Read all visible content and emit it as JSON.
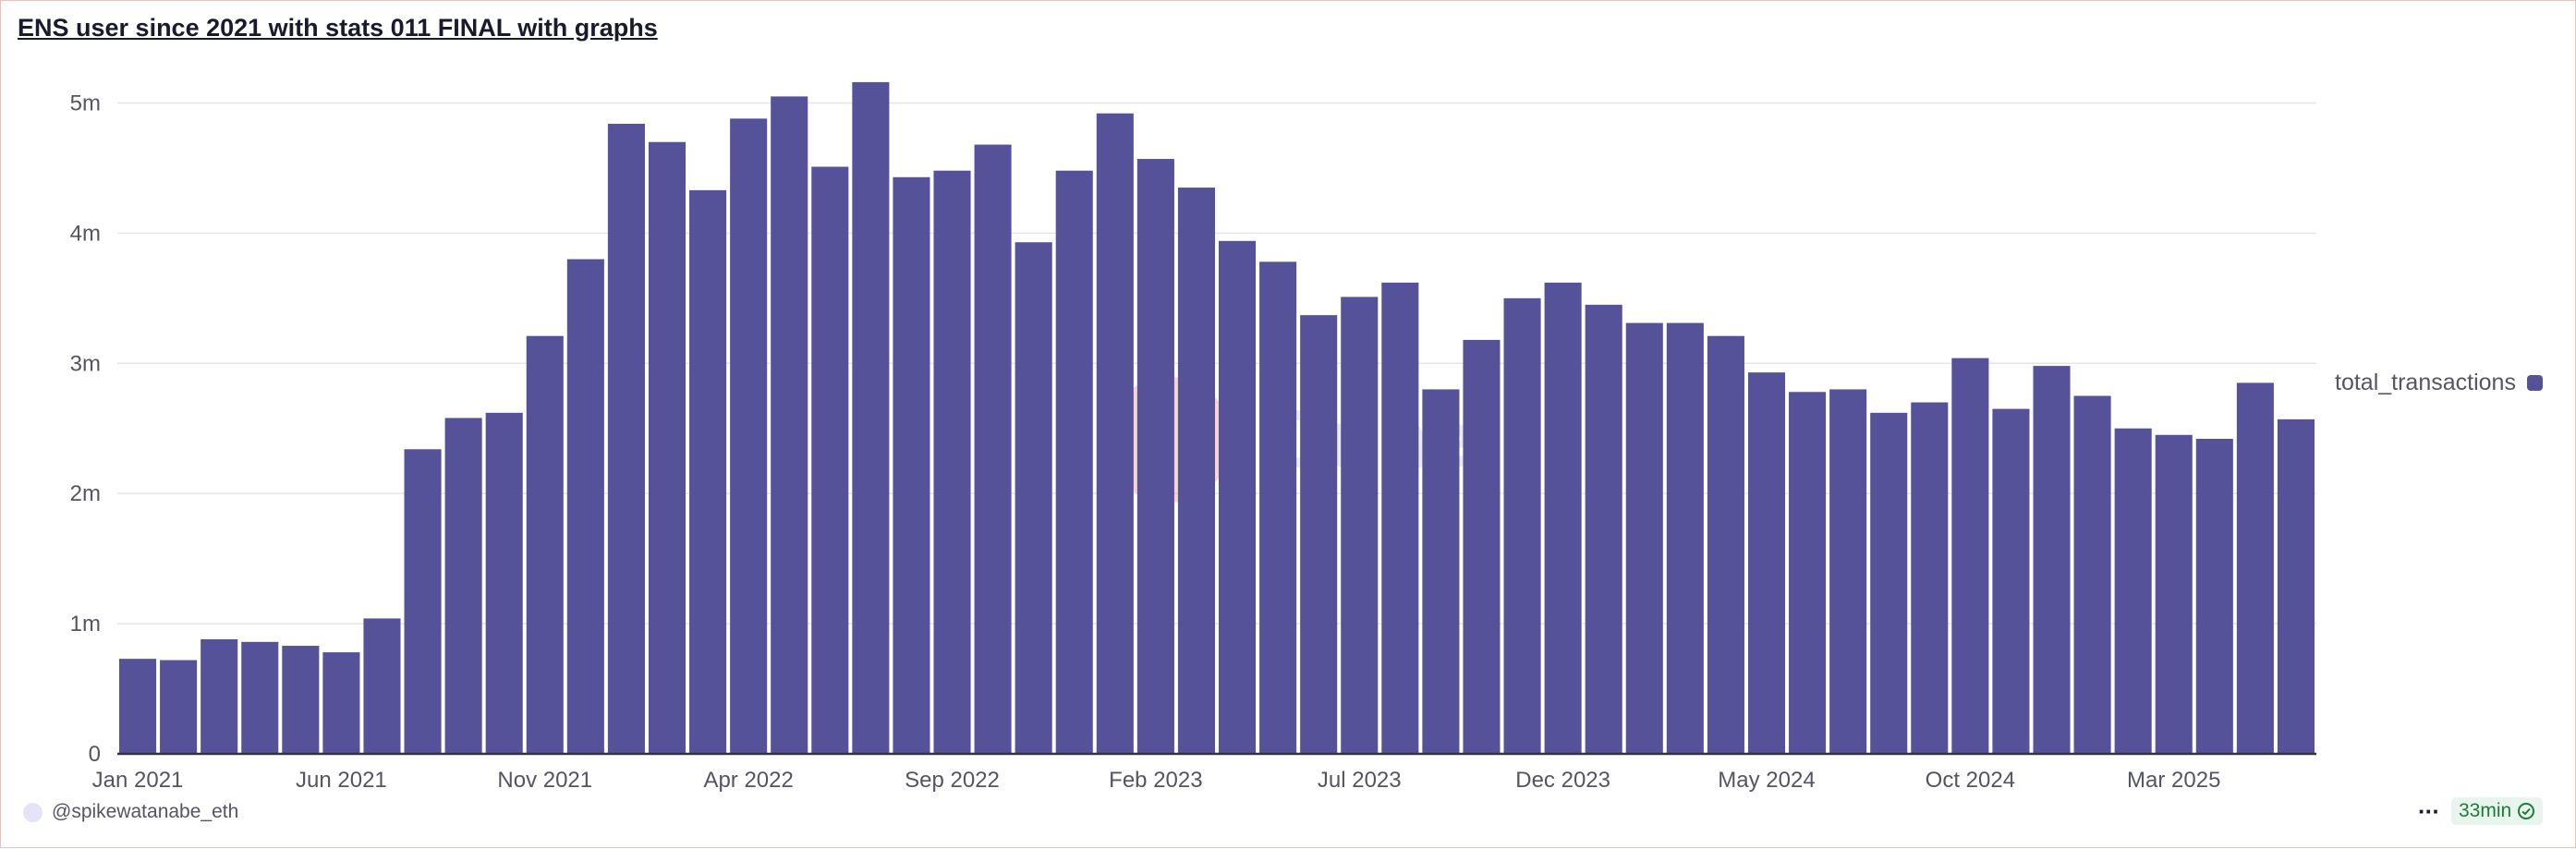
{
  "title": "ENS user since 2021 with stats 011 FINAL with graphs",
  "legend": {
    "label": "total_transactions",
    "color": "#55529a"
  },
  "footer": {
    "author": "@spikewatanabe_eth",
    "freshness": "33min",
    "more_icon": "ellipsis-icon",
    "check_icon": "check-circle-icon"
  },
  "watermark": {
    "text": "Dune"
  },
  "colors": {
    "bar": "#55529a",
    "grid": "#e6e6ea",
    "axis": "#333340",
    "watermark_circle": "#e58a6c",
    "watermark_text": "#c8c8d2"
  },
  "chart_data": {
    "type": "bar",
    "title": "ENS user since 2021 with stats 011 FINAL with graphs",
    "xlabel": "",
    "ylabel": "",
    "ylim": [
      0,
      5500000
    ],
    "y_ticks": [
      {
        "value": 0,
        "label": "0"
      },
      {
        "value": 1000000,
        "label": "1m"
      },
      {
        "value": 2000000,
        "label": "2m"
      },
      {
        "value": 3000000,
        "label": "3m"
      },
      {
        "value": 4000000,
        "label": "4m"
      },
      {
        "value": 5000000,
        "label": "5m"
      }
    ],
    "x_ticks": [
      {
        "index": 0,
        "label": "Jan 2021"
      },
      {
        "index": 5,
        "label": "Jun 2021"
      },
      {
        "index": 10,
        "label": "Nov 2021"
      },
      {
        "index": 15,
        "label": "Apr 2022"
      },
      {
        "index": 20,
        "label": "Sep 2022"
      },
      {
        "index": 25,
        "label": "Feb 2023"
      },
      {
        "index": 30,
        "label": "Jul 2023"
      },
      {
        "index": 35,
        "label": "Dec 2023"
      },
      {
        "index": 40,
        "label": "May 2024"
      },
      {
        "index": 45,
        "label": "Oct 2024"
      },
      {
        "index": 50,
        "label": "Mar 2025"
      }
    ],
    "grid": true,
    "legend_position": "right",
    "categories": [
      "2021-01",
      "2021-02",
      "2021-03",
      "2021-04",
      "2021-05",
      "2021-06",
      "2021-07",
      "2021-08",
      "2021-09",
      "2021-10",
      "2021-11",
      "2021-12",
      "2022-01",
      "2022-02",
      "2022-03",
      "2022-04",
      "2022-05",
      "2022-06",
      "2022-07",
      "2022-08",
      "2022-09",
      "2022-10",
      "2022-11",
      "2022-12",
      "2023-01",
      "2023-02",
      "2023-03",
      "2023-04",
      "2023-05",
      "2023-06",
      "2023-07",
      "2023-08",
      "2023-09",
      "2023-10",
      "2023-11",
      "2023-12",
      "2024-01",
      "2024-02",
      "2024-03",
      "2024-04",
      "2024-05",
      "2024-06",
      "2024-07",
      "2024-08",
      "2024-09",
      "2024-10",
      "2024-11",
      "2024-12",
      "2025-01",
      "2025-02",
      "2025-03",
      "2025-04",
      "2025-05",
      "2025-06"
    ],
    "series": [
      {
        "name": "total_transactions",
        "values": [
          730000,
          720000,
          880000,
          860000,
          830000,
          780000,
          1040000,
          2340000,
          2580000,
          2620000,
          3210000,
          3800000,
          4840000,
          4700000,
          4330000,
          4880000,
          5050000,
          4510000,
          5160000,
          4430000,
          4480000,
          4680000,
          3930000,
          4480000,
          4920000,
          4570000,
          4350000,
          3940000,
          3780000,
          3370000,
          3510000,
          3620000,
          2800000,
          3180000,
          3500000,
          3620000,
          3450000,
          3310000,
          3310000,
          3210000,
          2930000,
          2780000,
          2800000,
          2620000,
          2700000,
          3040000,
          2650000,
          2980000,
          2750000,
          2500000,
          2450000,
          2420000,
          2850000,
          2570000
        ]
      }
    ]
  }
}
